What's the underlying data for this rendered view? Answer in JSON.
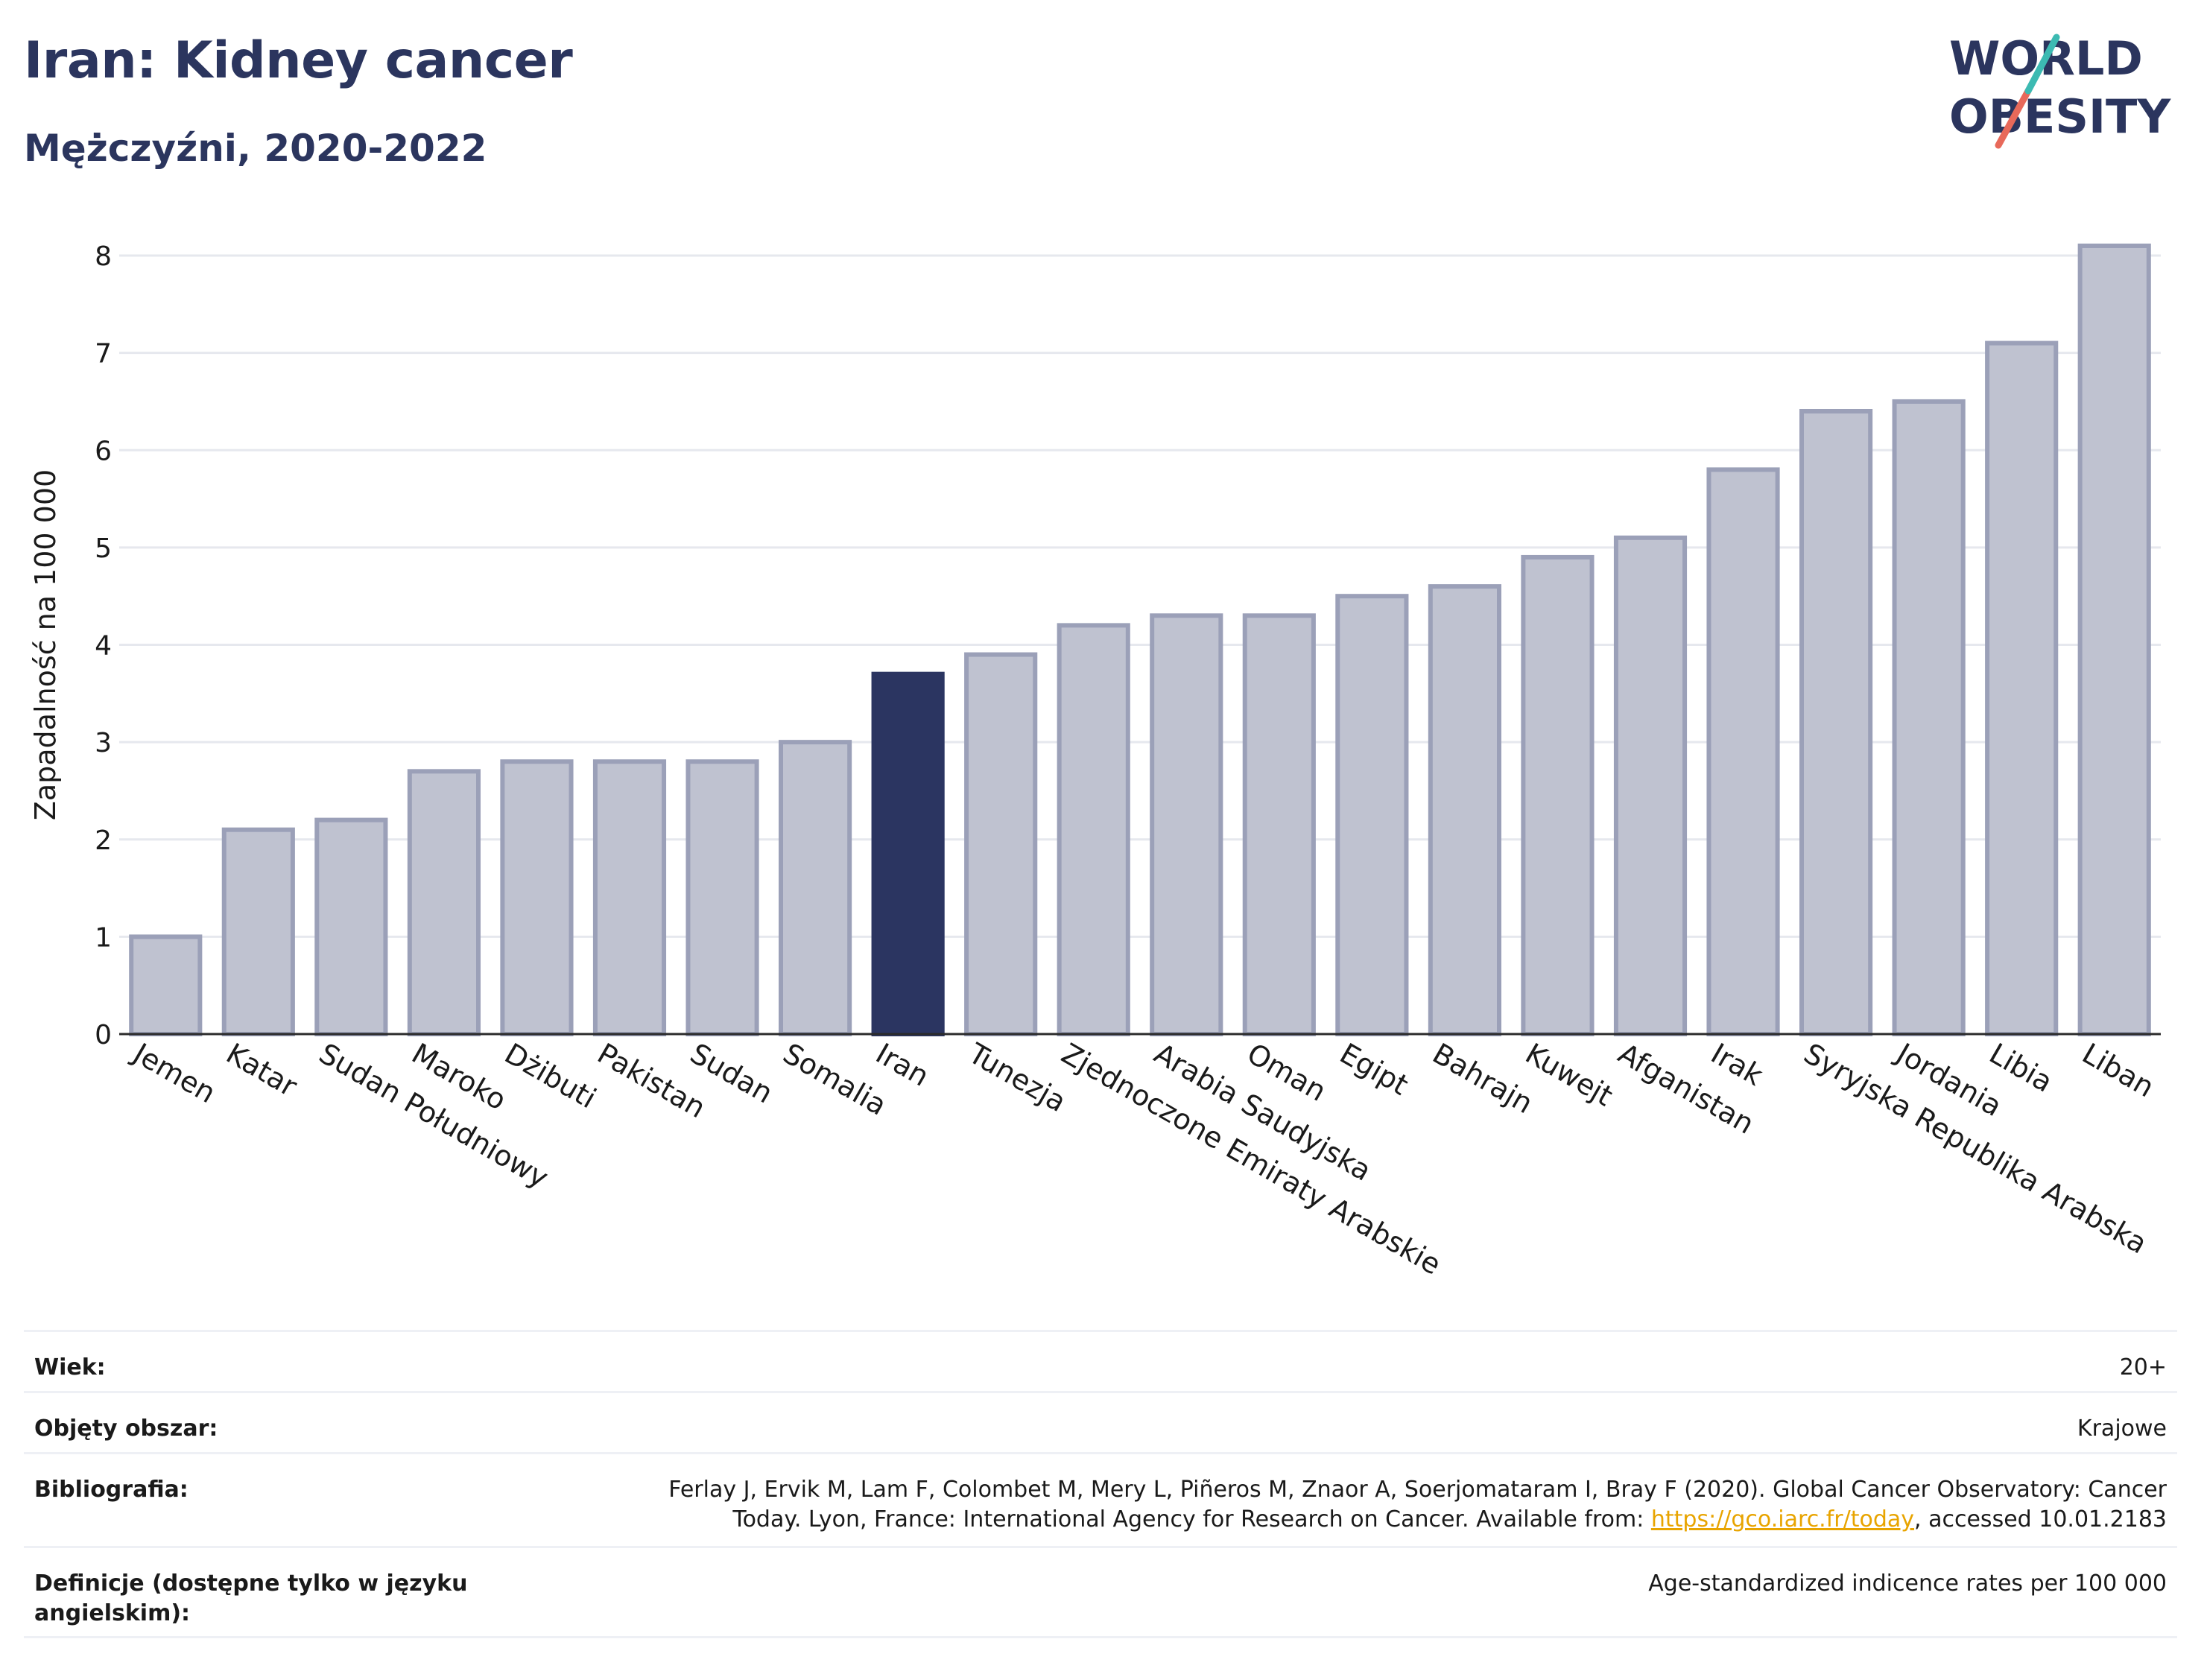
{
  "header": {
    "title": "Iran: Kidney cancer",
    "subtitle": "Mężczyźni, 2020-2022",
    "logo_text_line1": "WORLD",
    "logo_text_line2": "OBESITY"
  },
  "colors": {
    "navy": "#2b355e",
    "bar_fill": "#bfc2d0",
    "bar_stroke": "#9ba0b8",
    "highlight": "#2b3561",
    "logo_teal": "#3cbab2",
    "logo_coral": "#e8695a",
    "link": "#e8a400"
  },
  "chart_data": {
    "type": "bar",
    "ylabel": "Zapadalność na 100 000",
    "ylim": [
      0,
      8.3
    ],
    "yticks": [
      0,
      1,
      2,
      3,
      4,
      5,
      6,
      7,
      8
    ],
    "grid": true,
    "highlight_category": "Iran",
    "categories": [
      "Jemen",
      "Katar",
      "Sudan Południowy",
      "Maroko",
      "Dżibuti",
      "Pakistan",
      "Sudan",
      "Somalia",
      "Iran",
      "Tunezja",
      "Zjednoczone Emiraty Arabskie",
      "Arabia Saudyjska",
      "Oman",
      "Egipt",
      "Bahrajn",
      "Kuwejt",
      "Afganistan",
      "Irak",
      "Syryjska Republika Arabska",
      "Jordania",
      "Libia",
      "Liban"
    ],
    "values": [
      1.0,
      2.1,
      2.2,
      2.7,
      2.8,
      2.8,
      2.8,
      3.0,
      3.7,
      3.9,
      4.2,
      4.3,
      4.3,
      4.5,
      4.6,
      4.9,
      5.1,
      5.8,
      6.4,
      6.5,
      7.1,
      8.1
    ]
  },
  "meta": {
    "age_label": "Wiek:",
    "age_value": "20+",
    "coverage_label": "Objęty obszar:",
    "coverage_value": "Krajowe",
    "bibliography_label": "Bibliografia:",
    "bibliography_line1": "Ferlay J, Ervik M, Lam F, Colombet M, Mery L, Piñeros M, Znaor A, Soerjomataram I, Bray F (2020). Global Cancer Observatory: Cancer",
    "bibliography_line2_pre": "Today. Lyon, France: International Agency for Research on Cancer. Available from: ",
    "bibliography_link": "https://gco.iarc.fr/today",
    "bibliography_line2_post": ", accessed 10.01.2183",
    "definitions_label": "Definicje (dostępne tylko w języku angielskim):",
    "definitions_value": "Age-standardized indicence rates per 100 000"
  }
}
